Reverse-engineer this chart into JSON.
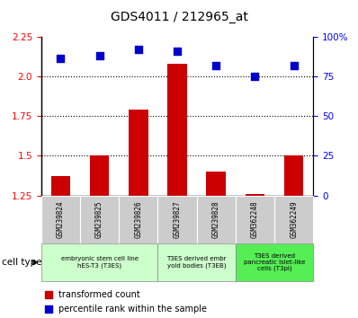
{
  "title": "GDS4011 / 212965_at",
  "samples": [
    "GSM239824",
    "GSM239825",
    "GSM239826",
    "GSM239827",
    "GSM239828",
    "GSM362248",
    "GSM362249"
  ],
  "transformed_count": [
    1.37,
    1.5,
    1.79,
    2.08,
    1.4,
    1.26,
    1.5
  ],
  "percentile_rank": [
    86,
    88,
    92,
    91,
    82,
    75,
    82
  ],
  "ylim_left": [
    1.25,
    2.25
  ],
  "ylim_right": [
    0,
    100
  ],
  "yticks_left": [
    1.25,
    1.5,
    1.75,
    2.0,
    2.25
  ],
  "yticks_right": [
    0,
    25,
    50,
    75,
    100
  ],
  "bar_color": "#cc0000",
  "dot_color": "#0000cc",
  "cell_groups": [
    {
      "label": "embryonic stem cell line\nhES-T3 (T3ES)",
      "start": 0,
      "end": 3,
      "color": "#ccffcc"
    },
    {
      "label": "T3ES derived embr\nyoid bodies (T3EB)",
      "start": 3,
      "end": 5,
      "color": "#ccffcc"
    },
    {
      "label": "T3ES derived\npancreatic islet-like\ncells (T3pi)",
      "start": 5,
      "end": 7,
      "color": "#55ee55"
    }
  ],
  "cell_type_label": "cell type",
  "legend_bar_label": "transformed count",
  "legend_dot_label": "percentile rank within the sample",
  "bar_width": 0.5,
  "dot_size": 35,
  "background_color": "#ffffff",
  "sample_box_color": "#cccccc",
  "gridline_ticks": [
    1.5,
    1.75,
    2.0
  ]
}
